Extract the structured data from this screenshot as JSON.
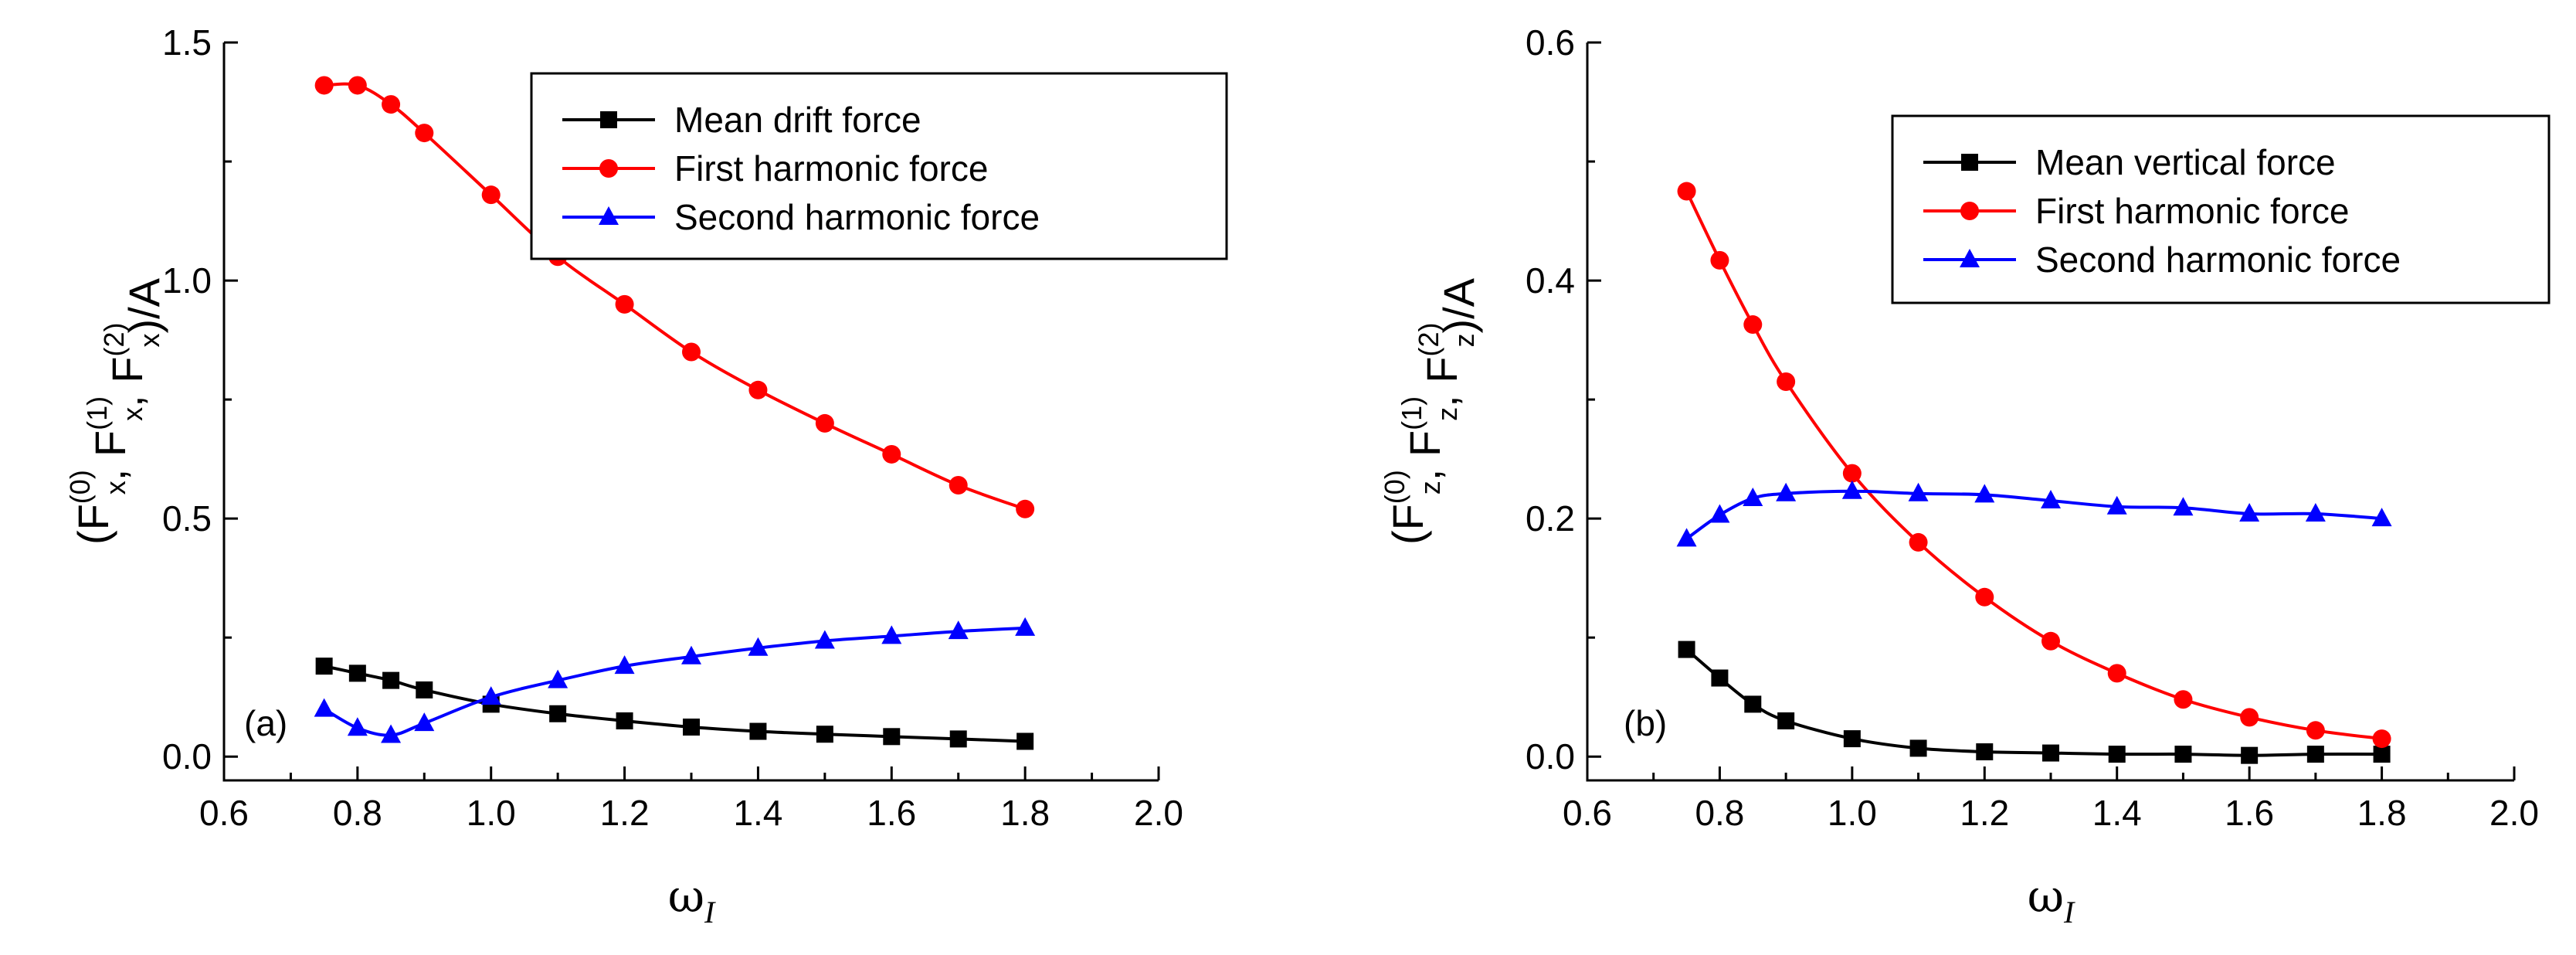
{
  "chart_data": [
    {
      "type": "line",
      "panel_label": "(a)",
      "xlabel": "ω",
      "xlabel_sub": "I",
      "ylabel_parts": [
        "(F",
        "(0)",
        "x",
        ", F",
        "(1)",
        "x",
        ", F",
        "(2)",
        "x",
        ")/A"
      ],
      "xlim": [
        0.6,
        2.0
      ],
      "ylim": [
        -0.05,
        1.5
      ],
      "xticks": [
        0.6,
        0.8,
        1.0,
        1.2,
        1.4,
        1.6,
        1.8,
        2.0
      ],
      "xtick_labels": [
        "0.6",
        "0.8",
        "1.0",
        "1.2",
        "1.4",
        "1.6",
        "1.8",
        "2.0"
      ],
      "yticks": [
        0.0,
        0.5,
        1.0,
        1.5
      ],
      "ytick_labels": [
        "0.0",
        "0.5",
        "1.0",
        "1.5"
      ],
      "legend_position": "top-right",
      "x": [
        0.75,
        0.8,
        0.85,
        0.9,
        1.0,
        1.1,
        1.2,
        1.3,
        1.4,
        1.5,
        1.6,
        1.7,
        1.8
      ],
      "series": [
        {
          "name": "Mean drift force",
          "color": "#000000",
          "marker": "square",
          "values": [
            0.19,
            0.175,
            0.16,
            0.14,
            0.11,
            0.09,
            0.075,
            0.062,
            0.053,
            0.047,
            0.042,
            0.037,
            0.032
          ]
        },
        {
          "name": "First harmonic force",
          "color": "#ff0000",
          "marker": "circle",
          "values": [
            1.41,
            1.41,
            1.37,
            1.31,
            1.18,
            1.05,
            0.95,
            0.85,
            0.77,
            0.7,
            0.635,
            0.57,
            0.52
          ]
        },
        {
          "name": "Second harmonic force",
          "color": "#0000ff",
          "marker": "triangle",
          "values": [
            0.1,
            0.06,
            0.045,
            0.07,
            0.125,
            0.16,
            0.19,
            0.21,
            0.228,
            0.243,
            0.253,
            0.263,
            0.27
          ]
        }
      ]
    },
    {
      "type": "line",
      "panel_label": "(b)",
      "xlabel": "ω",
      "xlabel_sub": "I",
      "ylabel_parts": [
        "(F",
        "(0)",
        "z",
        ", F",
        "(1)",
        "z",
        ", F",
        "(2)",
        "z",
        ")/A"
      ],
      "xlim": [
        0.6,
        2.0
      ],
      "ylim": [
        -0.02,
        0.6
      ],
      "xticks": [
        0.6,
        0.8,
        1.0,
        1.2,
        1.4,
        1.6,
        1.8,
        2.0
      ],
      "xtick_labels": [
        "0.6",
        "0.8",
        "1.0",
        "1.2",
        "1.4",
        "1.6",
        "1.8",
        "2.0"
      ],
      "yticks": [
        0.0,
        0.2,
        0.4,
        0.6
      ],
      "ytick_labels": [
        "0.0",
        "0.2",
        "0.4",
        "0.6"
      ],
      "legend_position": "top-right",
      "x": [
        0.75,
        0.8,
        0.85,
        0.9,
        1.0,
        1.1,
        1.2,
        1.3,
        1.4,
        1.5,
        1.6,
        1.7,
        1.8
      ],
      "series": [
        {
          "name": "Mean vertical force",
          "color": "#000000",
          "marker": "square",
          "values": [
            0.09,
            0.066,
            0.044,
            0.03,
            0.015,
            0.007,
            0.004,
            0.003,
            0.002,
            0.002,
            0.001,
            0.002,
            0.002
          ]
        },
        {
          "name": "First harmonic force",
          "color": "#ff0000",
          "marker": "circle",
          "values": [
            0.475,
            0.417,
            0.363,
            0.315,
            0.238,
            0.18,
            0.134,
            0.097,
            0.07,
            0.048,
            0.033,
            0.022,
            0.015
          ]
        },
        {
          "name": "Second harmonic force",
          "color": "#0000ff",
          "marker": "triangle",
          "values": [
            0.183,
            0.203,
            0.217,
            0.221,
            0.223,
            0.221,
            0.22,
            0.215,
            0.21,
            0.209,
            0.204,
            0.204,
            0.2
          ]
        }
      ]
    }
  ]
}
